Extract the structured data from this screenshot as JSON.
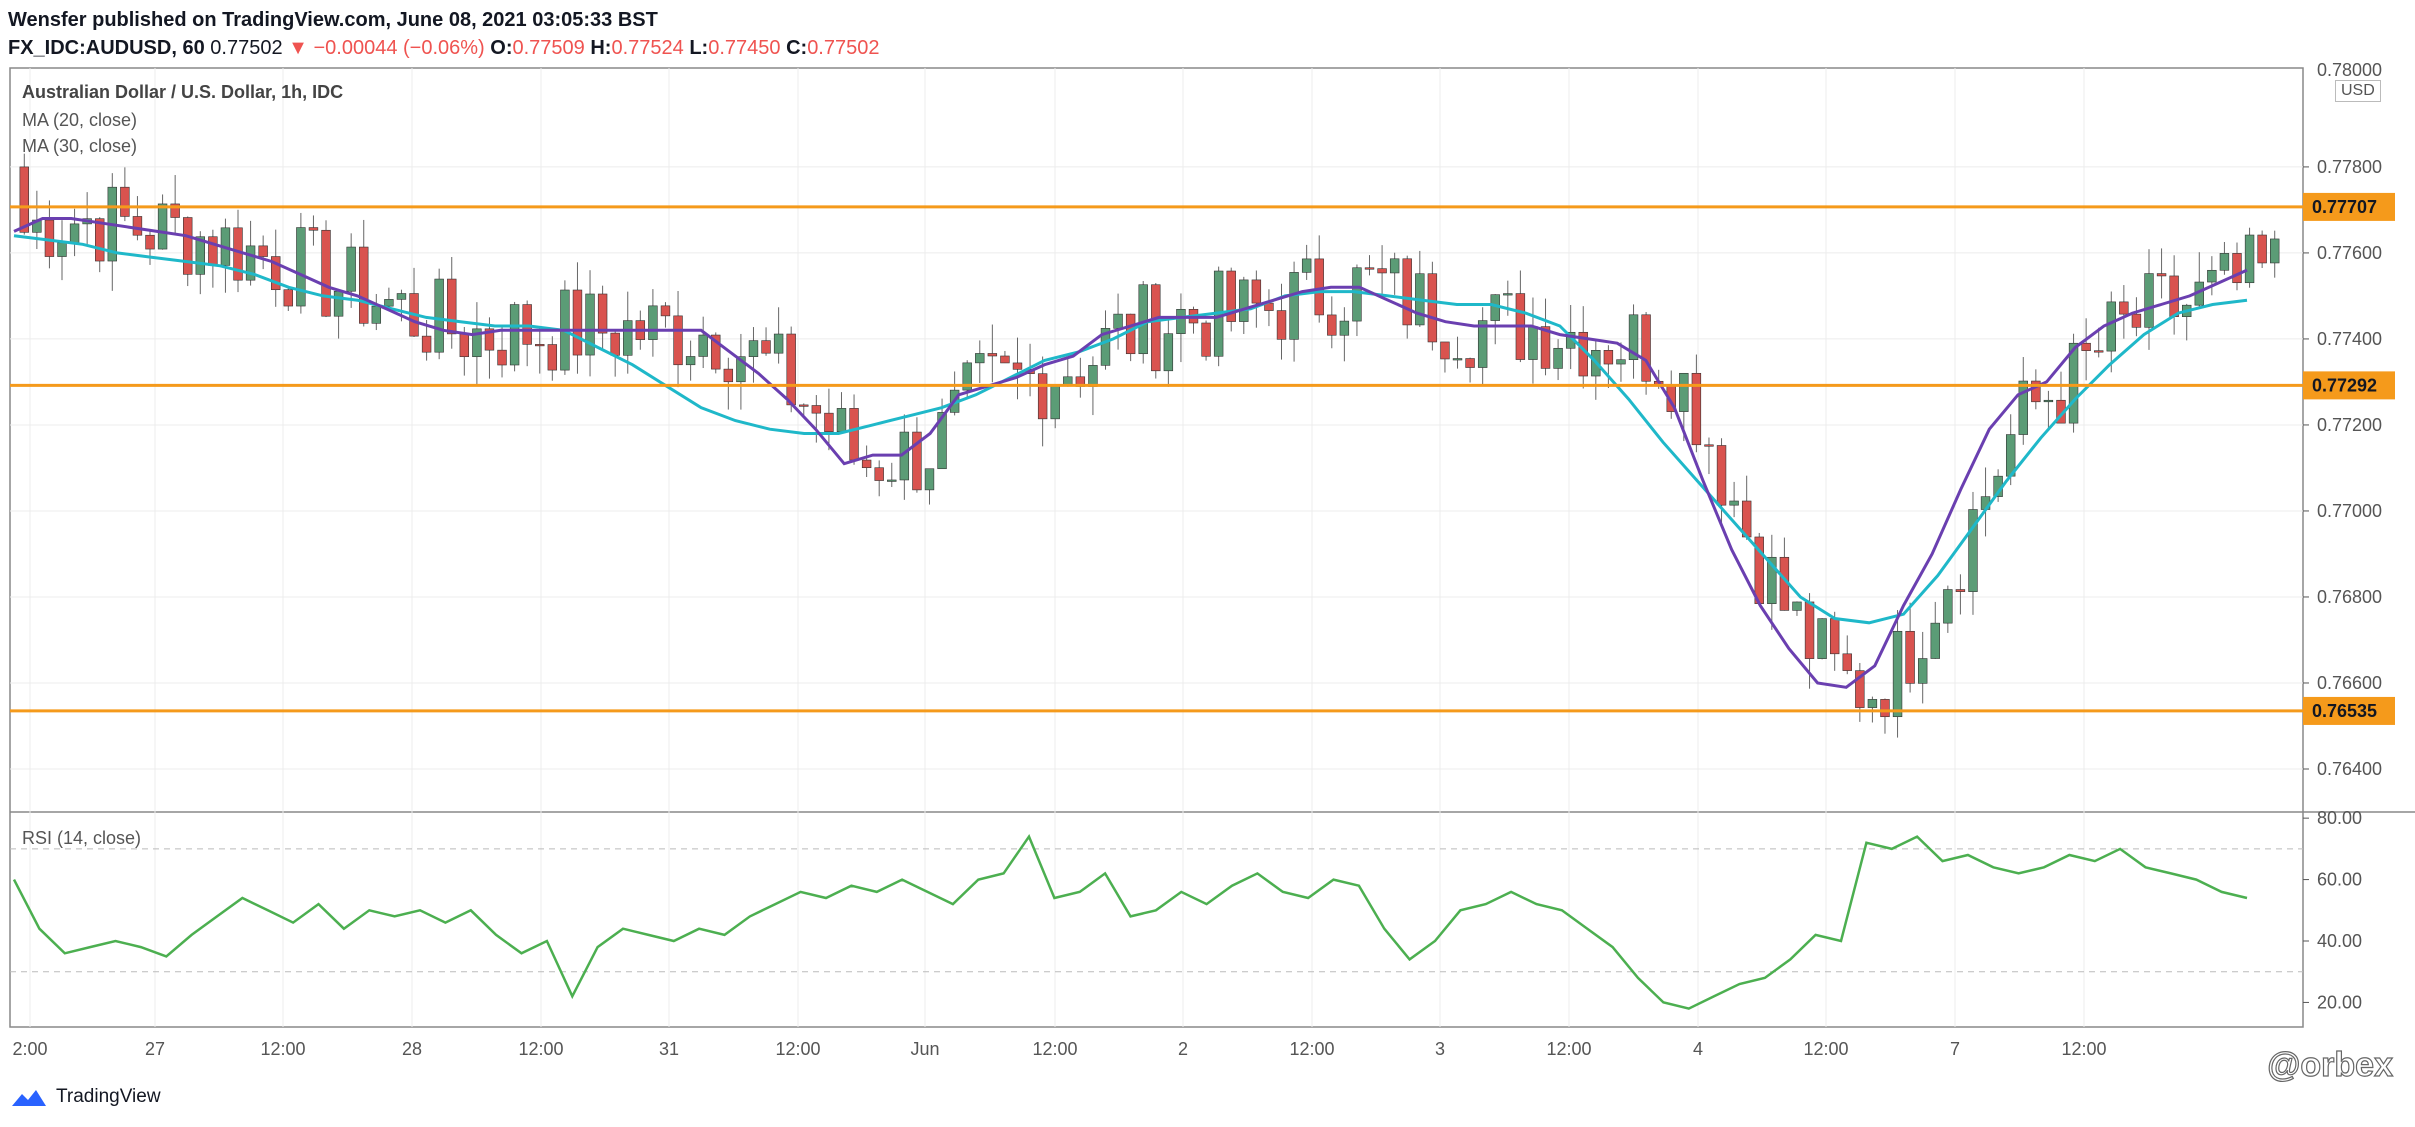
{
  "header": {
    "line1": "Wensfer published on TradingView.com, June 08, 2021 03:05:33 BST",
    "symbol": "FX_IDC:AUDUSD, 60",
    "price": "0.77502",
    "change": "▼ −0.00044 (−0.06%)",
    "o_label": "O:",
    "o_value": "0.77509",
    "h_label": "H:",
    "h_value": "0.77524",
    "l_label": "L:",
    "l_value": "0.77450",
    "c_label": "C:",
    "c_value": "0.77502"
  },
  "pane_labels": {
    "title": "Australian Dollar / U.S. Dollar, 1h, IDC",
    "ma20": "MA (20, close)",
    "ma30": "MA (30, close)",
    "rsi": "RSI (14, close)",
    "currency": "USD"
  },
  "footer": {
    "brand": "TradingView",
    "watermark": "@orbex"
  },
  "colors": {
    "up": "#5b9c76",
    "down": "#d9534f",
    "ma20": "#6a3fb0",
    "ma30": "#1fb8c9",
    "level": "#f59a1b",
    "rsi": "#4caf50",
    "grid": "#ececec",
    "axis": "#555555"
  },
  "chart_data": [
    {
      "type": "candlestick",
      "title": "Australian Dollar / U.S. Dollar, 1h, IDC",
      "ylim": [
        0.763,
        0.7803
      ],
      "y_ticks": [
        "0.77800",
        "0.77600",
        "0.77400",
        "0.77200",
        "0.77000",
        "0.76800",
        "0.76600",
        "0.76400"
      ],
      "x_ticks": [
        "2:00",
        "27",
        "12:00",
        "28",
        "12:00",
        "31",
        "12:00",
        "Jun",
        "12:00",
        "2",
        "12:00",
        "3",
        "12:00",
        "4",
        "12:00",
        "7",
        "12:00"
      ],
      "horizontal_levels": [
        "0.77707",
        "0.77292",
        "0.76535"
      ],
      "y_axis_extra_label": "0.78000",
      "series": [
        {
          "name": "MA (20, close)",
          "values": [
            0.7765,
            0.7768,
            0.7768,
            0.7767,
            0.7766,
            0.7765,
            0.7764,
            0.7762,
            0.776,
            0.7758,
            0.7755,
            0.7752,
            0.775,
            0.7747,
            0.7744,
            0.7742,
            0.7741,
            0.7742,
            0.7742,
            0.7742,
            0.7742,
            0.7742,
            0.7742,
            0.7742,
            0.7742,
            0.7737,
            0.7732,
            0.7726,
            0.7719,
            0.7711,
            0.7713,
            0.7713,
            0.7718,
            0.7727,
            0.7729,
            0.7731,
            0.7734,
            0.7736,
            0.7741,
            0.7743,
            0.7745,
            0.7745,
            0.7745,
            0.7747,
            0.7749,
            0.7751,
            0.7752,
            0.7752,
            0.7749,
            0.7746,
            0.7744,
            0.7743,
            0.7743,
            0.7743,
            0.7741,
            0.774,
            0.7739,
            0.7735,
            0.7724,
            0.7707,
            0.7691,
            0.7678,
            0.7668,
            0.766,
            0.7659,
            0.7664,
            0.7678,
            0.769,
            0.7705,
            0.7719,
            0.7727,
            0.773,
            0.7738,
            0.7743,
            0.7746,
            0.7748,
            0.775,
            0.7753,
            0.7756
          ]
        },
        {
          "name": "MA (30, close)",
          "values": [
            0.7764,
            0.7763,
            0.7762,
            0.776,
            0.7759,
            0.7758,
            0.7757,
            0.7755,
            0.7752,
            0.775,
            0.7749,
            0.7747,
            0.7745,
            0.7744,
            0.7743,
            0.7743,
            0.7742,
            0.7738,
            0.7734,
            0.7729,
            0.7724,
            0.7721,
            0.7719,
            0.7718,
            0.7718,
            0.772,
            0.7722,
            0.7724,
            0.7727,
            0.7731,
            0.7735,
            0.7737,
            0.774,
            0.7744,
            0.7745,
            0.7746,
            0.7747,
            0.775,
            0.7751,
            0.7751,
            0.775,
            0.7749,
            0.7748,
            0.7748,
            0.7746,
            0.7743,
            0.7735,
            0.7726,
            0.7716,
            0.7707,
            0.7698,
            0.7689,
            0.768,
            0.7675,
            0.7674,
            0.7676,
            0.7685,
            0.7696,
            0.7707,
            0.7717,
            0.7726,
            0.7734,
            0.7741,
            0.7746,
            0.7748,
            0.7749
          ]
        },
        {
          "name": "RSI (14, close)",
          "ylim": [
            12,
            82
          ],
          "y_ticks": [
            "80.00",
            "60.00",
            "40.00",
            "20.00"
          ],
          "reference_lines": [
            70,
            30
          ],
          "values": [
            60,
            44,
            36,
            38,
            40,
            38,
            35,
            42,
            48,
            54,
            50,
            46,
            52,
            44,
            50,
            48,
            50,
            46,
            50,
            42,
            36,
            40,
            22,
            38,
            44,
            42,
            40,
            44,
            42,
            48,
            52,
            56,
            54,
            58,
            56,
            60,
            56,
            52,
            60,
            62,
            74,
            54,
            56,
            62,
            48,
            50,
            56,
            52,
            58,
            62,
            56,
            54,
            60,
            58,
            44,
            34,
            40,
            50,
            52,
            56,
            52,
            50,
            44,
            38,
            28,
            20,
            18,
            22,
            26,
            28,
            34,
            42,
            40,
            72,
            70,
            74,
            66,
            68,
            64,
            62,
            64,
            68,
            66,
            70,
            64,
            62,
            60,
            56,
            54
          ]
        }
      ]
    }
  ]
}
